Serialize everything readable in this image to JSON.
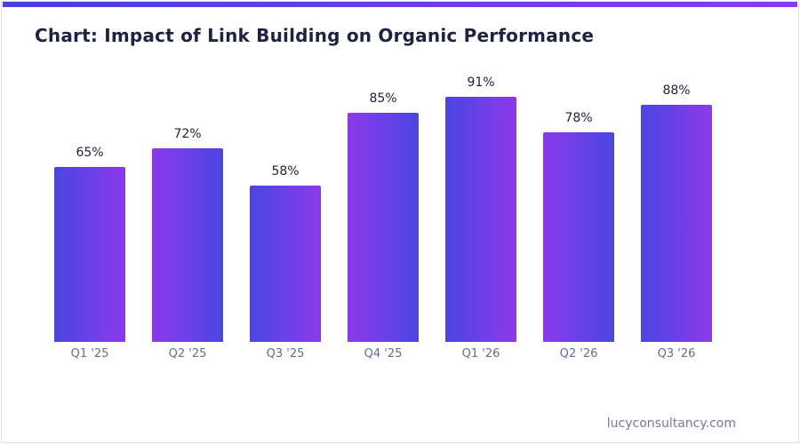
{
  "page": {
    "title": "Chart: Impact of Link Building on Organic Performance",
    "footer": "lucyconsultancy.com"
  },
  "theme": {
    "accent_gradient_start": "#4642dd",
    "accent_gradient_end": "#8b3aec",
    "bar_gradient_start": "#4b45e2",
    "bar_gradient_end": "#8b3aec",
    "title_color": "#1e2243",
    "value_label_color": "#1b2236",
    "tick_label_color": "#5f6f8a",
    "footer_color": "#6e7e95",
    "card_border_color": "#dde3ef"
  },
  "chart_data": {
    "type": "bar",
    "title": "Chart: Impact of Link Building on Organic Performance",
    "categories": [
      "Q1 '25",
      "Q2 '25",
      "Q3 '25",
      "Q4 '25",
      "Q1 '26",
      "Q2 '26",
      "Q3 '26"
    ],
    "values": [
      65,
      72,
      58,
      85,
      91,
      78,
      88
    ],
    "value_labels": [
      "65%",
      "72%",
      "58%",
      "85%",
      "91%",
      "78%",
      "88%"
    ],
    "xlabel": "",
    "ylabel": "",
    "ylim": [
      0,
      100
    ],
    "grid": false,
    "legend": null,
    "y_axis_visible": false,
    "bar_gradient": [
      "#4b45e2",
      "#8b3aec"
    ],
    "bar_gradient_alternates_direction": true
  }
}
